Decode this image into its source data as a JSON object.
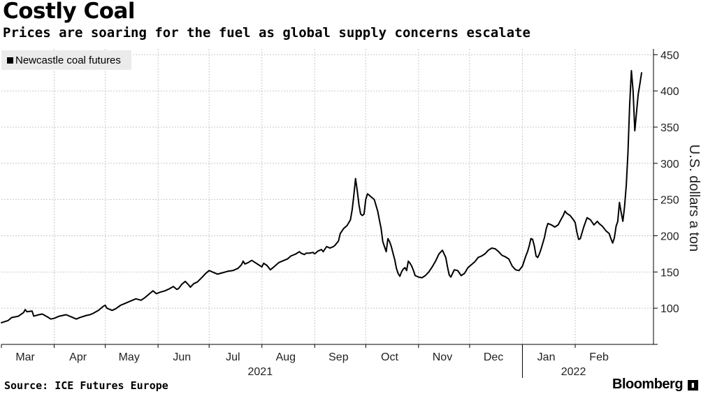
{
  "header": {
    "title": "Costly Coal",
    "subtitle": "Prices are soaring for the fuel as global supply concerns escalate"
  },
  "footer": {
    "source": "Source: ICE Futures Europe",
    "brand": "Bloomberg"
  },
  "chart_data": {
    "type": "line",
    "title": "Costly Coal",
    "subtitle": "Prices are soaring for the fuel as global supply concerns escalate",
    "ylabel": "U.S. dollars a ton",
    "xlabel": "",
    "ylim": [
      50,
      458
    ],
    "yticks": [
      100,
      150,
      200,
      250,
      300,
      350,
      400,
      450
    ],
    "x_range_days": [
      0,
      365
    ],
    "month_ticks": [
      {
        "label": "Mar",
        "day": 14
      },
      {
        "label": "Apr",
        "day": 45
      },
      {
        "label": "May",
        "day": 75
      },
      {
        "label": "Jun",
        "day": 106
      },
      {
        "label": "Jul",
        "day": 136
      },
      {
        "label": "Aug",
        "day": 167
      },
      {
        "label": "Sep",
        "day": 198
      },
      {
        "label": "Oct",
        "day": 228
      },
      {
        "label": "Nov",
        "day": 259
      },
      {
        "label": "Dec",
        "day": 289
      },
      {
        "label": "Jan",
        "day": 320
      },
      {
        "label": "Feb",
        "day": 351
      }
    ],
    "month_boundaries": [
      0,
      31,
      61,
      92,
      122,
      153,
      184,
      214,
      245,
      275,
      306,
      337
    ],
    "year_labels": [
      {
        "label": "2021",
        "day": 152
      },
      {
        "label": "2022",
        "day": 336
      }
    ],
    "legend": "top-left",
    "grid": true,
    "series": [
      {
        "name": "Newcastle coal futures",
        "color": "#000000",
        "points": [
          [
            0,
            80
          ],
          [
            4,
            83
          ],
          [
            6,
            87
          ],
          [
            10,
            89
          ],
          [
            13,
            94
          ],
          [
            14,
            98
          ],
          [
            15,
            95
          ],
          [
            18,
            96
          ],
          [
            19,
            89
          ],
          [
            22,
            91
          ],
          [
            24,
            92
          ],
          [
            27,
            88
          ],
          [
            29,
            85
          ],
          [
            31,
            86
          ],
          [
            34,
            89
          ],
          [
            38,
            91
          ],
          [
            41,
            88
          ],
          [
            44,
            85
          ],
          [
            46,
            87
          ],
          [
            50,
            90
          ],
          [
            52,
            91
          ],
          [
            54,
            93
          ],
          [
            57,
            97
          ],
          [
            60,
            103
          ],
          [
            61,
            104
          ],
          [
            62,
            100
          ],
          [
            65,
            97
          ],
          [
            67,
            99
          ],
          [
            70,
            104
          ],
          [
            72,
            106
          ],
          [
            75,
            109
          ],
          [
            79,
            113
          ],
          [
            82,
            111
          ],
          [
            84,
            114
          ],
          [
            86,
            118
          ],
          [
            88,
            122
          ],
          [
            89,
            124
          ],
          [
            91,
            120
          ],
          [
            93,
            122
          ],
          [
            96,
            124
          ],
          [
            98,
            126
          ],
          [
            101,
            130
          ],
          [
            103,
            126
          ],
          [
            104,
            127
          ],
          [
            106,
            133
          ],
          [
            108,
            137
          ],
          [
            110,
            132
          ],
          [
            111,
            129
          ],
          [
            113,
            134
          ],
          [
            115,
            136
          ],
          [
            118,
            143
          ],
          [
            120,
            148
          ],
          [
            122,
            152
          ],
          [
            123,
            151
          ],
          [
            125,
            149
          ],
          [
            127,
            147
          ],
          [
            130,
            149
          ],
          [
            133,
            151
          ],
          [
            136,
            152
          ],
          [
            139,
            155
          ],
          [
            141,
            160
          ],
          [
            142,
            165
          ],
          [
            143,
            161
          ],
          [
            145,
            163
          ],
          [
            147,
            166
          ],
          [
            149,
            163
          ],
          [
            151,
            160
          ],
          [
            153,
            157
          ],
          [
            154,
            162
          ],
          [
            156,
            159
          ],
          [
            158,
            153
          ],
          [
            160,
            157
          ],
          [
            163,
            163
          ],
          [
            166,
            166
          ],
          [
            168,
            168
          ],
          [
            170,
            172
          ],
          [
            173,
            175
          ],
          [
            175,
            178
          ],
          [
            176,
            176
          ],
          [
            178,
            174
          ],
          [
            179,
            176
          ],
          [
            181,
            176
          ],
          [
            183,
            177
          ],
          [
            184,
            175
          ],
          [
            186,
            179
          ],
          [
            188,
            181
          ],
          [
            189,
            178
          ],
          [
            191,
            185
          ],
          [
            193,
            183
          ],
          [
            195,
            185
          ],
          [
            196,
            187
          ],
          [
            198,
            193
          ],
          [
            199,
            203
          ],
          [
            201,
            210
          ],
          [
            203,
            214
          ],
          [
            205,
            222
          ],
          [
            206,
            236
          ],
          [
            207,
            256
          ],
          [
            208,
            279
          ],
          [
            209,
            262
          ],
          [
            210,
            243
          ],
          [
            211,
            230
          ],
          [
            212,
            228
          ],
          [
            213,
            230
          ],
          [
            214,
            250
          ],
          [
            215,
            258
          ],
          [
            216,
            256
          ],
          [
            217,
            254
          ],
          [
            219,
            250
          ],
          [
            221,
            234
          ],
          [
            222,
            222
          ],
          [
            223,
            210
          ],
          [
            224,
            192
          ],
          [
            225,
            185
          ],
          [
            226,
            178
          ],
          [
            227,
            196
          ],
          [
            228,
            192
          ],
          [
            229,
            185
          ],
          [
            230,
            176
          ],
          [
            231,
            167
          ],
          [
            232,
            155
          ],
          [
            233,
            148
          ],
          [
            234,
            144
          ],
          [
            235,
            150
          ],
          [
            236,
            154
          ],
          [
            237,
            156
          ],
          [
            238,
            152
          ],
          [
            239,
            165
          ],
          [
            240,
            162
          ],
          [
            241,
            158
          ],
          [
            242,
            152
          ],
          [
            243,
            145
          ],
          [
            245,
            143
          ],
          [
            247,
            142
          ],
          [
            249,
            145
          ],
          [
            251,
            150
          ],
          [
            253,
            157
          ],
          [
            255,
            165
          ],
          [
            257,
            175
          ],
          [
            259,
            180
          ],
          [
            261,
            170
          ],
          [
            262,
            157
          ],
          [
            263,
            146
          ],
          [
            264,
            143
          ],
          [
            266,
            153
          ],
          [
            268,
            152
          ],
          [
            270,
            145
          ],
          [
            272,
            148
          ],
          [
            274,
            156
          ],
          [
            276,
            160
          ],
          [
            278,
            164
          ],
          [
            280,
            170
          ],
          [
            282,
            172
          ],
          [
            284,
            175
          ],
          [
            286,
            180
          ],
          [
            288,
            183
          ],
          [
            290,
            182
          ],
          [
            292,
            178
          ],
          [
            294,
            173
          ],
          [
            296,
            171
          ],
          [
            298,
            168
          ],
          [
            300,
            158
          ],
          [
            302,
            153
          ],
          [
            304,
            152
          ],
          [
            306,
            158
          ],
          [
            308,
            172
          ],
          [
            309,
            178
          ],
          [
            310,
            186
          ],
          [
            311,
            196
          ],
          [
            312,
            195
          ],
          [
            313,
            186
          ],
          [
            314,
            172
          ],
          [
            315,
            170
          ],
          [
            316,
            175
          ],
          [
            317,
            182
          ],
          [
            318,
            190
          ],
          [
            319,
            198
          ],
          [
            320,
            210
          ],
          [
            321,
            217
          ],
          [
            323,
            215
          ],
          [
            325,
            212
          ],
          [
            327,
            215
          ],
          [
            329,
            224
          ],
          [
            330,
            228
          ],
          [
            331,
            234
          ],
          [
            332,
            231
          ],
          [
            334,
            228
          ],
          [
            336,
            222
          ],
          [
            337,
            218
          ],
          [
            338,
            205
          ],
          [
            339,
            195
          ],
          [
            340,
            196
          ],
          [
            342,
            212
          ],
          [
            344,
            225
          ],
          [
            346,
            222
          ],
          [
            348,
            215
          ],
          [
            350,
            220
          ],
          [
            351,
            217
          ],
          [
            353,
            213
          ],
          [
            355,
            207
          ],
          [
            357,
            203
          ],
          [
            358,
            196
          ],
          [
            359,
            190
          ],
          [
            360,
            197
          ],
          [
            361,
            213
          ],
          [
            362,
            220
          ],
          [
            363,
            246
          ],
          [
            364,
            232
          ],
          [
            365,
            220
          ],
          [
            366,
            240
          ],
          [
            367,
            270
          ],
          [
            368,
            315
          ],
          [
            369,
            380
          ],
          [
            370,
            428
          ],
          [
            371,
            400
          ],
          [
            372,
            345
          ],
          [
            373,
            370
          ],
          [
            374,
            395
          ],
          [
            375,
            410
          ],
          [
            376,
            425
          ]
        ]
      }
    ]
  }
}
